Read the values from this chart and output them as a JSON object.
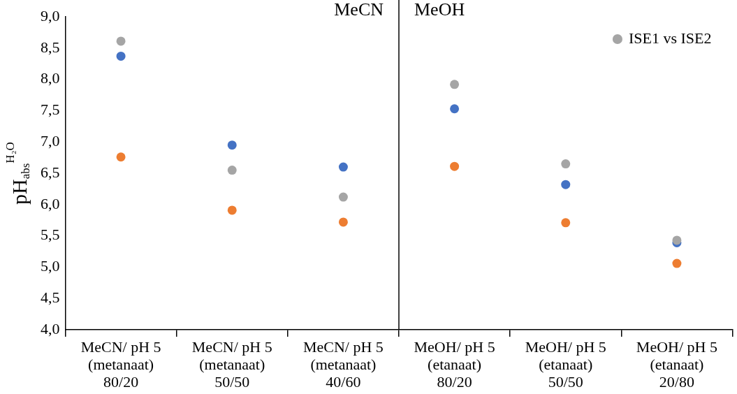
{
  "chart_data": {
    "type": "scatter",
    "ylabel": "pH$_{abs}$$^{H₂O}$",
    "categories": [
      "MeCN/ pH 5\n(metanaat)\n80/20",
      "MeCN/ pH 5\n(metanaat)\n50/50",
      "MeCN/ pH 5\n(metanaat)\n40/60",
      "MeOH/ pH 5\n(etanaat)\n80/20",
      "MeOH/ pH 5\n(etanaat)\n50/50",
      "MeOH/ pH 5\n(etanaat)\n20/80"
    ],
    "series": [
      {
        "color": "#4472c4",
        "values": [
          8.37,
          6.95,
          6.6,
          7.53,
          6.32,
          5.39
        ]
      },
      {
        "color": "#ed7d31",
        "values": [
          6.76,
          5.91,
          5.72,
          6.61,
          5.71,
          5.06
        ]
      },
      {
        "name": "ISE1 vs ISE2",
        "color": "#a5a5a5",
        "values": [
          8.61,
          6.55,
          6.12,
          7.92,
          6.65,
          5.43
        ]
      }
    ],
    "ylim": [
      4,
      9
    ],
    "yticks": [
      {
        "value": 4,
        "label": "4,0"
      },
      {
        "value": 4.5,
        "label": "4,5"
      },
      {
        "value": 5,
        "label": "5,0"
      },
      {
        "value": 5.5,
        "label": "5,5"
      },
      {
        "value": 6,
        "label": "6,0"
      },
      {
        "value": 6.5,
        "label": "6,5"
      },
      {
        "value": 7,
        "label": "7,0"
      },
      {
        "value": 7.5,
        "label": "7,5"
      },
      {
        "value": 8,
        "label": "8,0"
      },
      {
        "value": 8.5,
        "label": "8,5"
      },
      {
        "value": 9,
        "label": "9,0"
      }
    ],
    "annotations": [
      "MeCN",
      "MeOH"
    ],
    "grid": false,
    "legend": "top right",
    "marker": "circle"
  }
}
